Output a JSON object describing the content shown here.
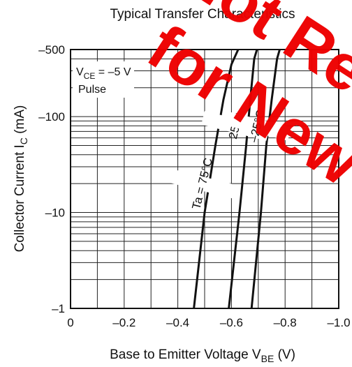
{
  "chart_data": {
    "type": "line",
    "title": "Typical Transfer Characteristics",
    "xlabel_parts": {
      "main": "Base to Emitter Voltage  V",
      "sub": "BE",
      "unit": "  (V)"
    },
    "ylabel_parts": {
      "main": "Collector Current  I",
      "sub": "C",
      "unit": "  (mA)"
    },
    "x_scale": "linear",
    "y_scale": "log",
    "xlim": [
      0,
      -1.0
    ],
    "ylim": [
      -1,
      -500
    ],
    "grid": true,
    "x_ticks": [
      {
        "value": 0,
        "label": "0"
      },
      {
        "value": -0.2,
        "label": "–0.2"
      },
      {
        "value": -0.4,
        "label": "–0.4"
      },
      {
        "value": -0.6,
        "label": "–0.6"
      },
      {
        "value": -0.8,
        "label": "–0.8"
      },
      {
        "value": -1.0,
        "label": "–1.0"
      }
    ],
    "y_ticks": [
      {
        "value": -1,
        "label": "–1"
      },
      {
        "value": -10,
        "label": "–10"
      },
      {
        "value": -100,
        "label": "–100"
      },
      {
        "value": -500,
        "label": "–500"
      }
    ],
    "conditions": {
      "vce_prefix": "V",
      "vce_sub": "CE",
      "vce_value": " = –5 V",
      "pulse": "Pulse"
    },
    "series": [
      {
        "name": "Ta = 75°C",
        "points": [
          [
            -0.46,
            -1
          ],
          [
            -0.5,
            -10
          ],
          [
            -0.54,
            -50
          ],
          [
            -0.57,
            -150
          ],
          [
            -0.6,
            -350
          ],
          [
            -0.625,
            -500
          ]
        ]
      },
      {
        "name": "25°C",
        "points": [
          [
            -0.59,
            -1
          ],
          [
            -0.63,
            -10
          ],
          [
            -0.655,
            -50
          ],
          [
            -0.67,
            -150
          ],
          [
            -0.685,
            -400
          ],
          [
            -0.695,
            -500
          ]
        ]
      },
      {
        "name": "–25°C",
        "points": [
          [
            -0.675,
            -1
          ],
          [
            -0.71,
            -10
          ],
          [
            -0.73,
            -50
          ],
          [
            -0.75,
            -150
          ],
          [
            -0.77,
            -400
          ],
          [
            -0.78,
            -500
          ]
        ]
      }
    ]
  },
  "watermark": {
    "line1": "Not Recommended",
    "line2": "for New Design"
  }
}
